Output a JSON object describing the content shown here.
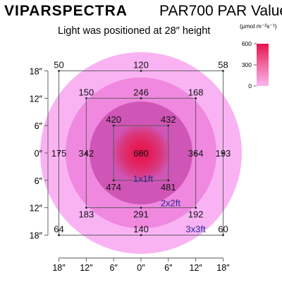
{
  "header": {
    "brand": "VIPARSPECTRA",
    "title": "PAR700 PAR Value",
    "subtitle": "Light was positioned at 28″ height"
  },
  "legend": {
    "unit": "(μmol m⁻²s⁻¹)",
    "ticks": [
      "600",
      "300",
      "0"
    ],
    "range": [
      0,
      600
    ],
    "color_high": "#e8134f",
    "color_low": "#fbb5f0"
  },
  "colors": {
    "outer": "#f9b3f3",
    "ring2": "#ef88de",
    "ring3": "#cf56b6",
    "core": "#e01b54",
    "frame": "#555555",
    "zone_text": "#2a2a9a"
  },
  "chart_data": {
    "type": "heatmap",
    "title": "PAR700 PAR Value",
    "subtitle": "Light was positioned at 28″ height",
    "x_tick_labels": [
      "18″",
      "12″",
      "6″",
      "0″",
      "6″",
      "12″",
      "18″"
    ],
    "y_tick_labels": [
      "18″",
      "12″",
      "6″",
      "0″",
      "6″",
      "12″",
      "18″"
    ],
    "x": [
      -18,
      -12,
      -6,
      0,
      6,
      12,
      18
    ],
    "y": [
      18,
      12,
      6,
      0,
      -6,
      -12,
      -18
    ],
    "points": [
      {
        "x": -18,
        "y": 18,
        "value": 50
      },
      {
        "x": 0,
        "y": 18,
        "value": 120
      },
      {
        "x": 18,
        "y": 18,
        "value": 58
      },
      {
        "x": -12,
        "y": 12,
        "value": 150
      },
      {
        "x": 0,
        "y": 12,
        "value": 246
      },
      {
        "x": 12,
        "y": 12,
        "value": 168
      },
      {
        "x": -6,
        "y": 6,
        "value": 420
      },
      {
        "x": 6,
        "y": 6,
        "value": 432
      },
      {
        "x": -18,
        "y": 0,
        "value": 175
      },
      {
        "x": -12,
        "y": 0,
        "value": 342
      },
      {
        "x": 0,
        "y": 0,
        "value": 600
      },
      {
        "x": 12,
        "y": 0,
        "value": 364
      },
      {
        "x": 18,
        "y": 0,
        "value": 193
      },
      {
        "x": -6,
        "y": -6,
        "value": 474
      },
      {
        "x": 6,
        "y": -6,
        "value": 481
      },
      {
        "x": -12,
        "y": -12,
        "value": 183
      },
      {
        "x": 0,
        "y": -12,
        "value": 291
      },
      {
        "x": 12,
        "y": -12,
        "value": 192
      },
      {
        "x": -18,
        "y": -18,
        "value": 64
      },
      {
        "x": 0,
        "y": -18,
        "value": 140
      },
      {
        "x": 18,
        "y": -18,
        "value": 60
      }
    ],
    "coverage_zones": [
      {
        "label": "1x1ft",
        "half_extent": 6
      },
      {
        "label": "2x2ft",
        "half_extent": 12
      },
      {
        "label": "3x3ft",
        "half_extent": 18
      }
    ]
  }
}
